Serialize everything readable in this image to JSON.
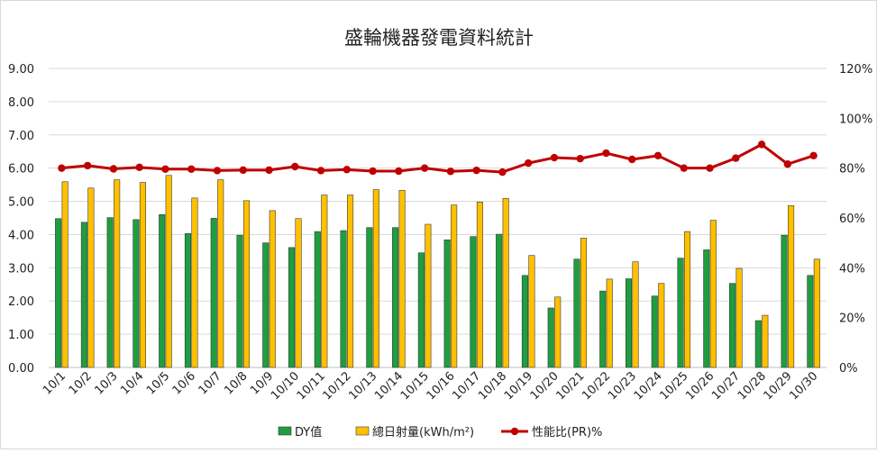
{
  "chart_data": {
    "type": "bar",
    "title": "盛輪機器發電資料統計",
    "categories": [
      "10/1",
      "10/2",
      "10/3",
      "10/4",
      "10/5",
      "10/6",
      "10/7",
      "10/8",
      "10/9",
      "10/10",
      "10/11",
      "10/12",
      "10/13",
      "10/14",
      "10/15",
      "10/16",
      "10/17",
      "10/18",
      "10/19",
      "10/20",
      "10/21",
      "10/22",
      "10/23",
      "10/24",
      "10/25",
      "10/26",
      "10/27",
      "10/28",
      "10/29",
      "10/30"
    ],
    "y_left": {
      "ylim": [
        0,
        9
      ],
      "ticks": [
        "0.00",
        "1.00",
        "2.00",
        "3.00",
        "4.00",
        "5.00",
        "6.00",
        "7.00",
        "8.00",
        "9.00"
      ]
    },
    "y_right": {
      "ylim": [
        0,
        120
      ],
      "ticks": [
        "0%",
        "20%",
        "40%",
        "60%",
        "80%",
        "100%",
        "120%"
      ]
    },
    "grid": true,
    "legend_position": "bottom",
    "series": [
      {
        "name": "DY值",
        "type": "bar",
        "axis": "left",
        "color": "#1e9e3e",
        "values": [
          4.48,
          4.37,
          4.51,
          4.45,
          4.6,
          4.03,
          4.49,
          3.98,
          3.75,
          3.61,
          4.09,
          4.12,
          4.21,
          4.21,
          3.45,
          3.84,
          3.94,
          4.01,
          2.77,
          1.79,
          3.26,
          2.3,
          2.67,
          2.15,
          3.29,
          3.54,
          2.53,
          1.41,
          3.98,
          2.77
        ]
      },
      {
        "name": "總日射量(kWh/m²)",
        "type": "bar",
        "axis": "left",
        "color": "#ffc000",
        "values": [
          5.59,
          5.4,
          5.65,
          5.57,
          5.78,
          5.1,
          5.65,
          5.02,
          4.72,
          4.48,
          5.19,
          5.19,
          5.35,
          5.33,
          4.31,
          4.89,
          4.98,
          5.09,
          3.37,
          2.12,
          3.89,
          2.66,
          3.18,
          2.53,
          4.09,
          4.43,
          2.98,
          1.57,
          4.87,
          3.26
        ]
      },
      {
        "name": "性能比(PR)%",
        "type": "line",
        "axis": "right",
        "color": "#c00000",
        "values": [
          80.0,
          81.0,
          79.7,
          80.3,
          79.6,
          79.6,
          79.0,
          79.2,
          79.2,
          80.6,
          79.0,
          79.4,
          78.8,
          78.8,
          80.0,
          78.7,
          79.1,
          78.4,
          82.0,
          84.2,
          83.8,
          86.0,
          83.5,
          85.0,
          80.0,
          80.0,
          84.0,
          89.5,
          81.6,
          85.0
        ]
      }
    ]
  }
}
